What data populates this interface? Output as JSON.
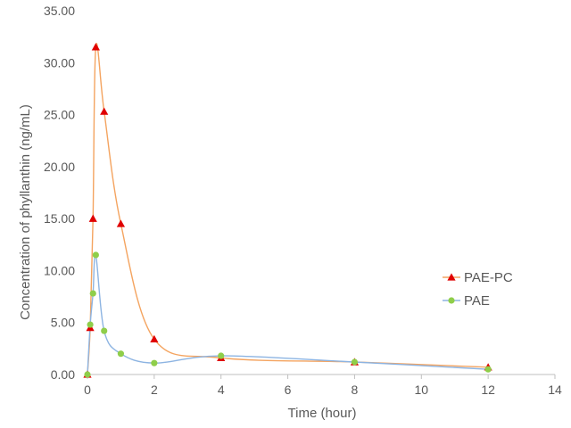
{
  "chart_data": {
    "type": "scatter",
    "title": "",
    "xlabel": "Time (hour)",
    "ylabel": "Concentration of phyllanthin (ng/mL)",
    "xlim": [
      0,
      14
    ],
    "ylim": [
      0,
      35
    ],
    "x_ticks": [
      "0",
      "2",
      "4",
      "6",
      "8",
      "10",
      "12",
      "14"
    ],
    "y_ticks": [
      "0.00",
      "5.00",
      "10.00",
      "15.00",
      "20.00",
      "25.00",
      "30.00",
      "35.00"
    ],
    "x_tick_values": [
      0,
      2,
      4,
      6,
      8,
      10,
      12,
      14
    ],
    "y_tick_values": [
      0,
      5,
      10,
      15,
      20,
      25,
      30,
      35
    ],
    "grid": false,
    "legend_position": "right",
    "series": [
      {
        "name": "PAE-PC",
        "marker": "triangle",
        "marker_color": "#e00000",
        "line_color": "#f4a460",
        "x": [
          0,
          0.083,
          0.167,
          0.25,
          0.5,
          1,
          2,
          4,
          8,
          12
        ],
        "y": [
          0,
          4.5,
          15.0,
          31.5,
          25.3,
          14.5,
          3.4,
          1.6,
          1.2,
          0.7
        ]
      },
      {
        "name": "PAE",
        "marker": "circle",
        "marker_color": "#8fce4a",
        "line_color": "#8db4e2",
        "x": [
          0,
          0.083,
          0.167,
          0.25,
          0.5,
          1,
          2,
          4,
          8,
          12
        ],
        "y": [
          0,
          4.8,
          7.8,
          11.5,
          4.2,
          2.0,
          1.1,
          1.8,
          1.2,
          0.5
        ]
      }
    ]
  }
}
